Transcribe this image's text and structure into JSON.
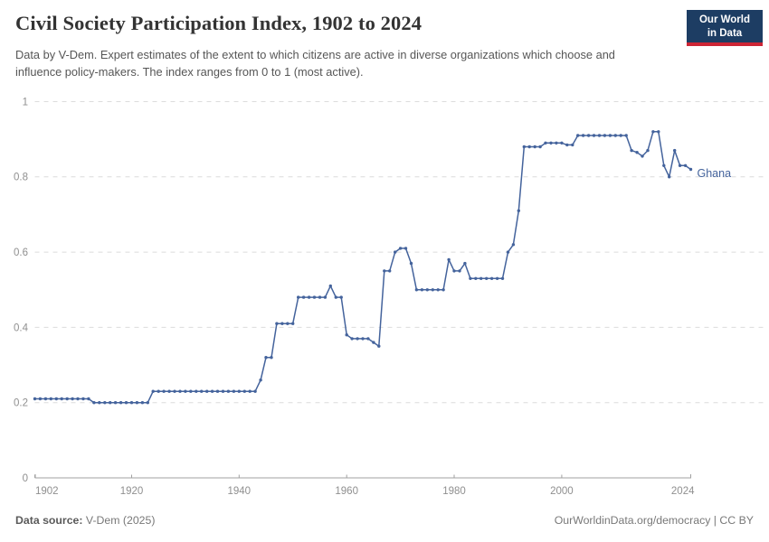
{
  "header": {
    "title": "Civil Society Participation Index, 1902 to 2024",
    "subtitle": "Data by V-Dem. Expert estimates of the extent to which citizens are active in diverse organizations which choose and influence policy-makers. The index ranges from 0 to 1 (most active).",
    "logo": {
      "line1": "Our World",
      "line2": "in Data",
      "bg_color": "#1d3d63",
      "accent_color": "#cd2535"
    }
  },
  "footer": {
    "source_label": "Data source:",
    "source_value": " V-Dem (2025)",
    "link_text": "OurWorldinData.org/democracy | CC BY"
  },
  "chart_data": {
    "type": "line",
    "title": "Civil Society Participation Index, 1902 to 2024",
    "xlabel": "",
    "ylabel": "",
    "xlim": [
      1902,
      2024
    ],
    "ylim": [
      0,
      1
    ],
    "x_ticks": [
      1902,
      1920,
      1940,
      1960,
      1980,
      2000,
      2024
    ],
    "y_ticks": [
      0,
      0.2,
      0.4,
      0.6,
      0.8,
      1
    ],
    "grid": "horizontal-dashed",
    "legend_position": "end-of-line-label",
    "line_color": "#44639c",
    "gridline_color": "#dcdcdc",
    "axis_color": "#a1a1a1",
    "tick_label_color": "#8f8f8f",
    "series": [
      {
        "name": "Ghana",
        "color": "#44639c",
        "x": [
          1902,
          1903,
          1904,
          1905,
          1906,
          1907,
          1908,
          1909,
          1910,
          1911,
          1912,
          1913,
          1914,
          1915,
          1916,
          1917,
          1918,
          1919,
          1920,
          1921,
          1922,
          1923,
          1924,
          1925,
          1926,
          1927,
          1928,
          1929,
          1930,
          1931,
          1932,
          1933,
          1934,
          1935,
          1936,
          1937,
          1938,
          1939,
          1940,
          1941,
          1942,
          1943,
          1944,
          1945,
          1946,
          1947,
          1948,
          1949,
          1950,
          1951,
          1952,
          1953,
          1954,
          1955,
          1956,
          1957,
          1958,
          1959,
          1960,
          1961,
          1962,
          1963,
          1964,
          1965,
          1966,
          1967,
          1968,
          1969,
          1970,
          1971,
          1972,
          1973,
          1974,
          1975,
          1976,
          1977,
          1978,
          1979,
          1980,
          1981,
          1982,
          1983,
          1984,
          1985,
          1986,
          1987,
          1988,
          1989,
          1990,
          1991,
          1992,
          1993,
          1994,
          1995,
          1996,
          1997,
          1998,
          1999,
          2000,
          2001,
          2002,
          2003,
          2004,
          2005,
          2006,
          2007,
          2008,
          2009,
          2010,
          2011,
          2012,
          2013,
          2014,
          2015,
          2016,
          2017,
          2018,
          2019,
          2020,
          2021,
          2022,
          2023,
          2024
        ],
        "y": [
          0.21,
          0.21,
          0.21,
          0.21,
          0.21,
          0.21,
          0.21,
          0.21,
          0.21,
          0.21,
          0.21,
          0.2,
          0.2,
          0.2,
          0.2,
          0.2,
          0.2,
          0.2,
          0.2,
          0.2,
          0.2,
          0.2,
          0.23,
          0.23,
          0.23,
          0.23,
          0.23,
          0.23,
          0.23,
          0.23,
          0.23,
          0.23,
          0.23,
          0.23,
          0.23,
          0.23,
          0.23,
          0.23,
          0.23,
          0.23,
          0.23,
          0.23,
          0.26,
          0.32,
          0.32,
          0.41,
          0.41,
          0.41,
          0.41,
          0.48,
          0.48,
          0.48,
          0.48,
          0.48,
          0.48,
          0.51,
          0.48,
          0.48,
          0.38,
          0.37,
          0.37,
          0.37,
          0.37,
          0.36,
          0.35,
          0.55,
          0.55,
          0.6,
          0.61,
          0.61,
          0.57,
          0.5,
          0.5,
          0.5,
          0.5,
          0.5,
          0.5,
          0.58,
          0.55,
          0.55,
          0.57,
          0.53,
          0.53,
          0.53,
          0.53,
          0.53,
          0.53,
          0.53,
          0.6,
          0.62,
          0.71,
          0.88,
          0.88,
          0.88,
          0.88,
          0.89,
          0.89,
          0.89,
          0.89,
          0.885,
          0.885,
          0.91,
          0.91,
          0.91,
          0.91,
          0.91,
          0.91,
          0.91,
          0.91,
          0.91,
          0.91,
          0.87,
          0.865,
          0.855,
          0.87,
          0.92,
          0.92,
          0.83,
          0.8,
          0.87,
          0.83,
          0.83,
          0.82
        ]
      }
    ]
  }
}
